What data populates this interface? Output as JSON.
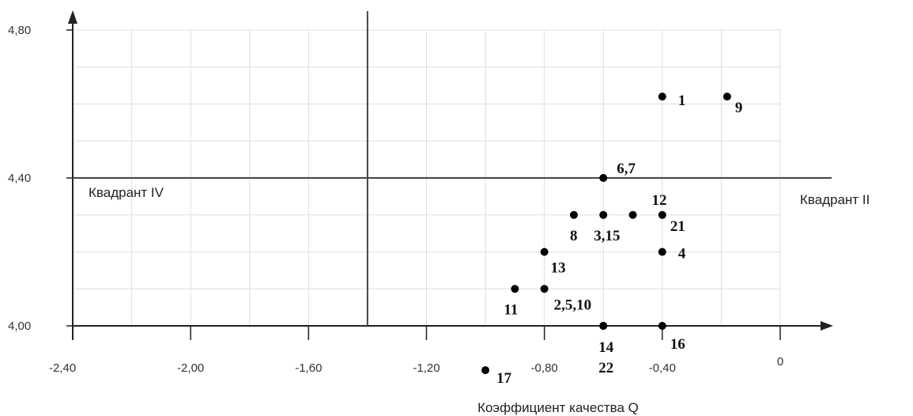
{
  "chart_data": {
    "type": "scatter",
    "title": "",
    "xlabel": "Коэффициент качества Q",
    "ylabel": "",
    "xlim": [
      -2.4,
      0
    ],
    "ylim": [
      4.0,
      4.8
    ],
    "grid": true,
    "x_ticks": [
      "-2,40",
      "-2,00",
      "-1,60",
      "-1,20",
      "-0,80",
      "-0,40",
      "0"
    ],
    "y_ticks": [
      "4,80",
      "4,40",
      "4,00"
    ],
    "dividers": {
      "x": -1.4,
      "y": 4.4
    },
    "quadrant_labels": {
      "left": "Квадрант IV",
      "right": "Квадрант II"
    },
    "points": [
      {
        "x": -0.4,
        "y": 4.62,
        "label": "1"
      },
      {
        "x": -0.18,
        "y": 4.62,
        "label": "9"
      },
      {
        "x": -0.6,
        "y": 4.4,
        "label": "6,7"
      },
      {
        "x": -0.5,
        "y": 4.3,
        "label": "12"
      },
      {
        "x": -0.7,
        "y": 4.3,
        "label": "8"
      },
      {
        "x": -0.6,
        "y": 4.3,
        "label": "3,15"
      },
      {
        "x": -0.4,
        "y": 4.3,
        "label": "21"
      },
      {
        "x": -0.8,
        "y": 4.2,
        "label": "13"
      },
      {
        "x": -0.4,
        "y": 4.2,
        "label": "4"
      },
      {
        "x": -0.9,
        "y": 4.1,
        "label": "11"
      },
      {
        "x": -0.8,
        "y": 4.1,
        "label": "2,5,10"
      },
      {
        "x": -0.6,
        "y": 4.0,
        "label": "14"
      },
      {
        "x": -0.6,
        "y": 4.0,
        "label": "22"
      },
      {
        "x": -0.4,
        "y": 4.0,
        "label": "16"
      },
      {
        "x": -1.0,
        "y": 3.88,
        "label": "17"
      }
    ]
  }
}
